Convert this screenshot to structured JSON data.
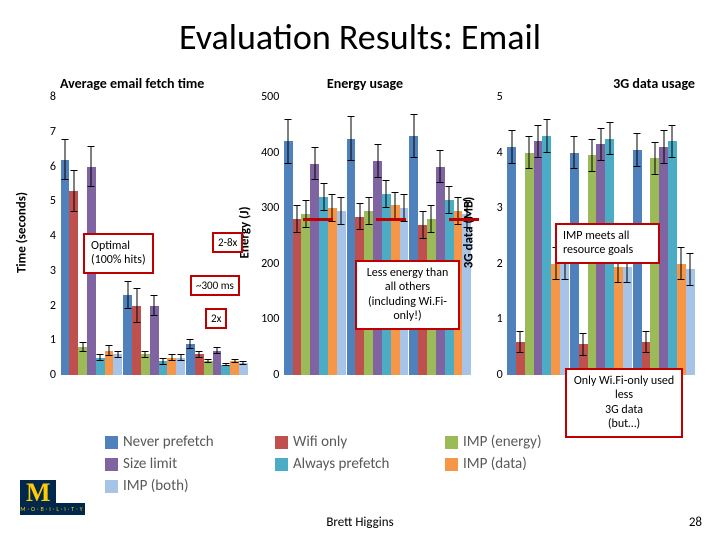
{
  "title": "Evaluation Results: Email",
  "legend_items": [
    {
      "label": "Never prefetch",
      "color": "#4f81bd"
    },
    {
      "label": "Wifi only",
      "color": "#c0504d"
    },
    {
      "label": "IMP (energy)",
      "color": "#9bbb59"
    },
    {
      "label": "Size limit",
      "color": "#8064a2"
    },
    {
      "label": "Always prefetch",
      "color": "#4bacc6"
    },
    {
      "label": "IMP (data)",
      "color": "#f79646"
    },
    {
      "label": "IMP (both)",
      "color": "#a6c4e8"
    }
  ],
  "colors": [
    "#4f81bd",
    "#c0504d",
    "#9bbb59",
    "#8064a2",
    "#4bacc6",
    "#f79646",
    "#a6c4e8"
  ],
  "charts": [
    {
      "id": "time",
      "title": "Average email fetch time",
      "y_label": "Time (seconds)",
      "y_max": 8,
      "y_ticks": [
        0,
        1,
        2,
        3,
        4,
        5,
        6,
        7,
        8
      ],
      "groups": [
        {
          "values": [
            6.2,
            5.3,
            0.8,
            6.0,
            0.5,
            0.7,
            0.6
          ],
          "err": [
            0.6,
            0.6,
            0.15,
            0.6,
            0.1,
            0.15,
            0.1
          ]
        },
        {
          "values": [
            2.3,
            2.0,
            0.6,
            2.0,
            0.4,
            0.5,
            0.5
          ],
          "err": [
            0.4,
            0.5,
            0.1,
            0.3,
            0.1,
            0.1,
            0.1
          ]
        },
        {
          "values": [
            0.9,
            0.6,
            0.4,
            0.7,
            0.3,
            0.4,
            0.35
          ],
          "err": [
            0.15,
            0.1,
            0.05,
            0.1,
            0.05,
            0.05,
            0.05
          ]
        }
      ]
    },
    {
      "id": "energy",
      "title": "Energy usage",
      "y_label": "Energy (J)",
      "y_max": 500,
      "y_ticks": [
        0,
        100,
        200,
        300,
        400,
        500
      ],
      "groups": [
        {
          "values": [
            420,
            280,
            290,
            380,
            320,
            300,
            295
          ],
          "err": [
            40,
            25,
            25,
            30,
            25,
            25,
            25
          ]
        },
        {
          "values": [
            425,
            285,
            295,
            385,
            325,
            305,
            300
          ],
          "err": [
            40,
            25,
            25,
            30,
            25,
            25,
            25
          ]
        },
        {
          "values": [
            430,
            270,
            280,
            375,
            315,
            295,
            290
          ],
          "err": [
            40,
            25,
            25,
            30,
            25,
            25,
            25
          ]
        }
      ]
    },
    {
      "id": "data",
      "title": "3G data usage",
      "y_label": "3G data (MB)",
      "y_max": 5,
      "y_ticks": [
        0,
        1,
        2,
        3,
        4,
        5
      ],
      "groups": [
        {
          "values": [
            4.1,
            0.6,
            4.0,
            4.2,
            4.3,
            2.0,
            2.0
          ],
          "err": [
            0.3,
            0.2,
            0.3,
            0.3,
            0.3,
            0.3,
            0.3
          ]
        },
        {
          "values": [
            4.0,
            0.55,
            3.95,
            4.15,
            4.25,
            1.95,
            1.95
          ],
          "err": [
            0.3,
            0.2,
            0.3,
            0.3,
            0.3,
            0.3,
            0.3
          ]
        },
        {
          "values": [
            4.05,
            0.6,
            3.9,
            4.1,
            4.2,
            2.0,
            1.9
          ],
          "err": [
            0.3,
            0.2,
            0.3,
            0.3,
            0.3,
            0.3,
            0.3
          ]
        }
      ]
    }
  ],
  "annotations": {
    "optimal": "Optimal\n(100% hits)",
    "x2_8": "2-8x",
    "ms300": "~300 ms",
    "x2": "2x",
    "less_energy": "Less energy than all others (including Wi.Fi-only!)",
    "imp_meets": "IMP meets all resource goals",
    "wifi_only": "Only Wi.Fi-only used less\n3G data\n(but…)"
  },
  "footer": {
    "author": "Brett Higgins",
    "page": "28",
    "logo_tag": "M·O·B·I·L·I·T·Y"
  }
}
